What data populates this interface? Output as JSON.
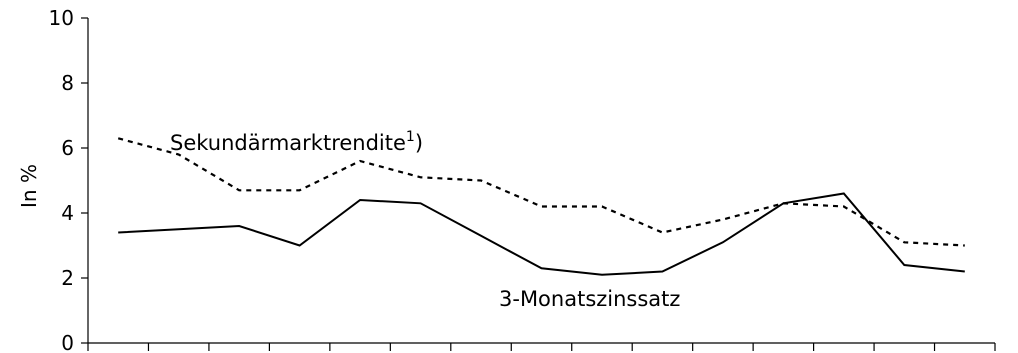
{
  "chart_data": {
    "type": "line",
    "ylabel": "In %",
    "xlabel": "",
    "ylim": [
      0,
      10
    ],
    "yticks": [
      "0",
      "2",
      "4",
      "6",
      "8",
      "10"
    ],
    "x": [
      1,
      2,
      3,
      4,
      5,
      6,
      7,
      8,
      9,
      10,
      11,
      12,
      13,
      14,
      15
    ],
    "series": [
      {
        "name": "Sekundärmarktrendite",
        "name_superscript": "1",
        "name_suffix": ")",
        "style": "dashed",
        "color": "#000000",
        "values": [
          6.3,
          5.8,
          4.7,
          4.7,
          5.6,
          5.1,
          5.0,
          4.2,
          4.2,
          3.4,
          3.8,
          4.3,
          4.2,
          3.1,
          3.0
        ]
      },
      {
        "name": "3-Monatszinssatz",
        "style": "solid",
        "color": "#000000",
        "values": [
          3.4,
          3.5,
          3.6,
          3.0,
          4.4,
          4.3,
          3.3,
          2.3,
          2.1,
          2.2,
          3.1,
          4.3,
          4.6,
          2.4,
          2.2
        ]
      }
    ]
  }
}
